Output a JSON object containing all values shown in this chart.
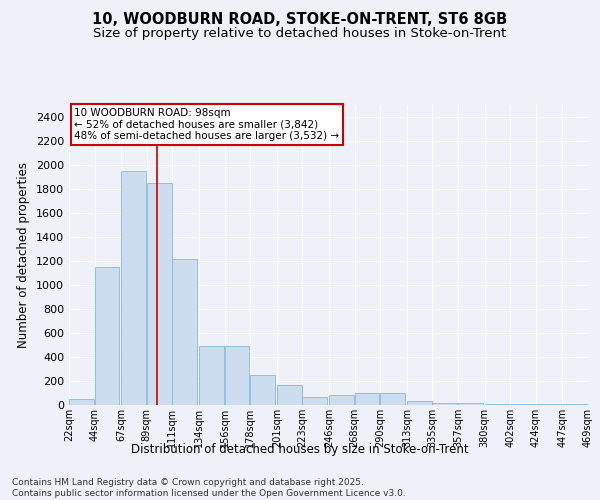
{
  "title_line1": "10, WOODBURN ROAD, STOKE-ON-TRENT, ST6 8GB",
  "title_line2": "Size of property relative to detached houses in Stoke-on-Trent",
  "xlabel": "Distribution of detached houses by size in Stoke-on-Trent",
  "ylabel": "Number of detached properties",
  "annotation_title": "10 WOODBURN ROAD: 98sqm",
  "annotation_line2": "← 52% of detached houses are smaller (3,842)",
  "annotation_line3": "48% of semi-detached houses are larger (3,532) →",
  "footer_line1": "Contains HM Land Registry data © Crown copyright and database right 2025.",
  "footer_line2": "Contains public sector information licensed under the Open Government Licence v3.0.",
  "red_line_x": 98,
  "bin_starts": [
    22,
    44,
    67,
    89,
    111,
    134,
    156,
    178,
    201,
    223,
    246,
    268,
    290,
    313,
    335,
    357,
    380,
    402,
    424,
    447
  ],
  "bin_width": 22,
  "bin_labels": [
    "22sqm",
    "44sqm",
    "67sqm",
    "89sqm",
    "111sqm",
    "134sqm",
    "156sqm",
    "178sqm",
    "201sqm",
    "223sqm",
    "246sqm",
    "268sqm",
    "290sqm",
    "313sqm",
    "335sqm",
    "357sqm",
    "380sqm",
    "402sqm",
    "424sqm",
    "447sqm",
    "469sqm"
  ],
  "bar_heights": [
    50,
    1150,
    1950,
    1850,
    1220,
    490,
    490,
    250,
    170,
    70,
    80,
    100,
    100,
    30,
    15,
    15,
    5,
    5,
    5,
    5
  ],
  "bar_color": "#ccddf0",
  "bar_edge_color": "#88b8dc",
  "red_line_color": "#cc0000",
  "background_color": "#eef2f8",
  "grid_color": "#ffffff",
  "ylim": [
    0,
    2500
  ],
  "yticks": [
    0,
    200,
    400,
    600,
    800,
    1000,
    1200,
    1400,
    1600,
    1800,
    2000,
    2200,
    2400
  ],
  "annotation_box_facecolor": "#ffffff",
  "annotation_box_edgecolor": "#cc0000",
  "title_fontsize": 10.5,
  "subtitle_fontsize": 9.5,
  "ylabel_fontsize": 8.5,
  "xlabel_fontsize": 8.5,
  "ytick_fontsize": 8,
  "xtick_fontsize": 7,
  "annotation_fontsize": 7.5,
  "footer_fontsize": 6.5
}
